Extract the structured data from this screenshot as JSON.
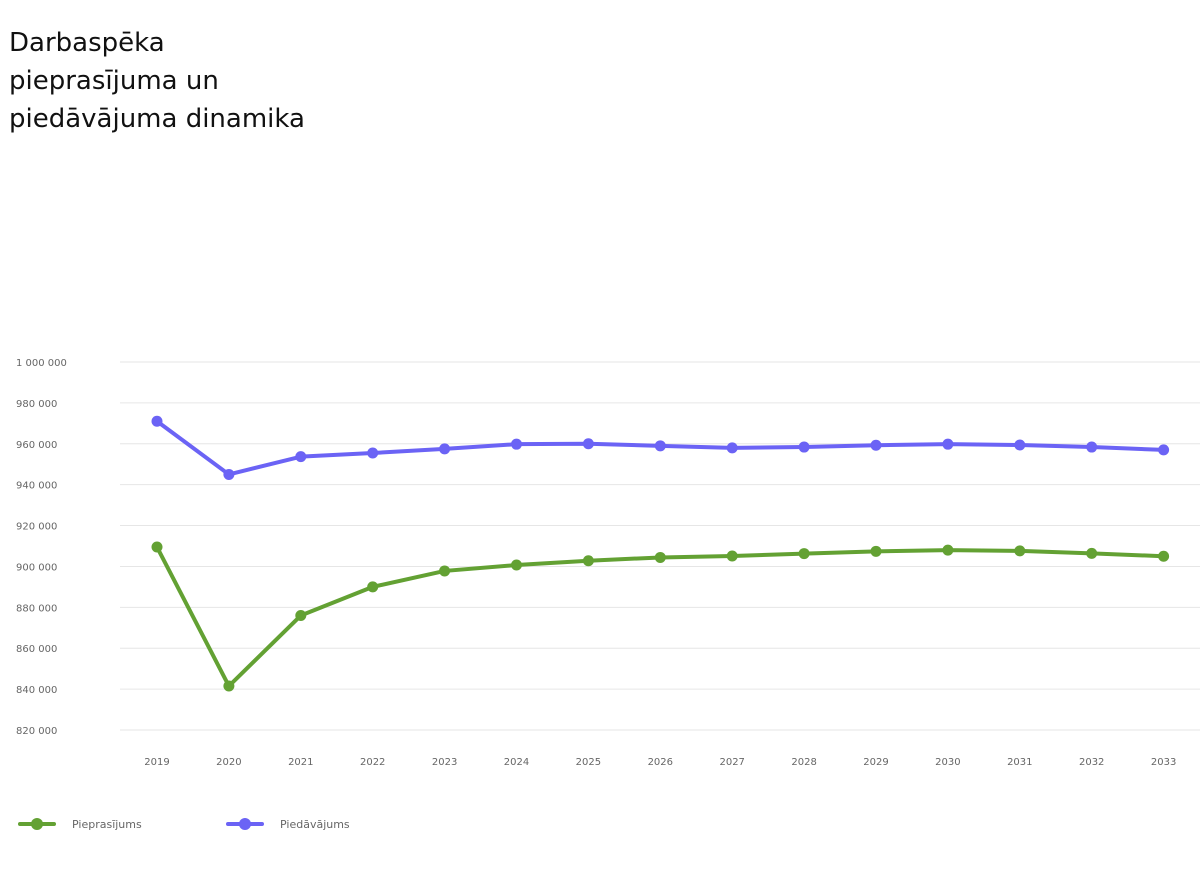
{
  "title_lines": [
    "Darbaspēka",
    "pieprasījuma un",
    "piedāvājuma dinamika"
  ],
  "chart_data": {
    "type": "line",
    "title": "Darbaspēka pieprasījuma un piedāvājuma dinamika",
    "x": [
      "2019",
      "2020",
      "2021",
      "2022",
      "2023",
      "2024",
      "2025",
      "2026",
      "2027",
      "2028",
      "2029",
      "2030",
      "2031",
      "2032",
      "2033"
    ],
    "series": [
      {
        "name": "Pieprasījums",
        "color": "#63a133",
        "values": [
          909500,
          841500,
          876000,
          890000,
          897800,
          900700,
          902800,
          904400,
          905100,
          906300,
          907400,
          908000,
          907600,
          906400,
          905000
        ]
      },
      {
        "name": "Piedāvājums",
        "color": "#6b63f5",
        "values": [
          971000,
          945000,
          953700,
          955500,
          957500,
          959800,
          960000,
          959000,
          958000,
          958400,
          959300,
          959800,
          959400,
          958400,
          957000
        ]
      }
    ],
    "y_ticks": [
      1000000,
      980000,
      960000,
      940000,
      920000,
      900000,
      880000,
      860000,
      840000,
      820000
    ],
    "y_tick_labels": [
      "1 000 000",
      "980 000",
      "960 000",
      "940 000",
      "920 000",
      "900 000",
      "880 000",
      "860 000",
      "840 000",
      "820 000"
    ],
    "ylim": [
      820000,
      1000000
    ],
    "grid": true,
    "legend_position": "bottom-left"
  }
}
